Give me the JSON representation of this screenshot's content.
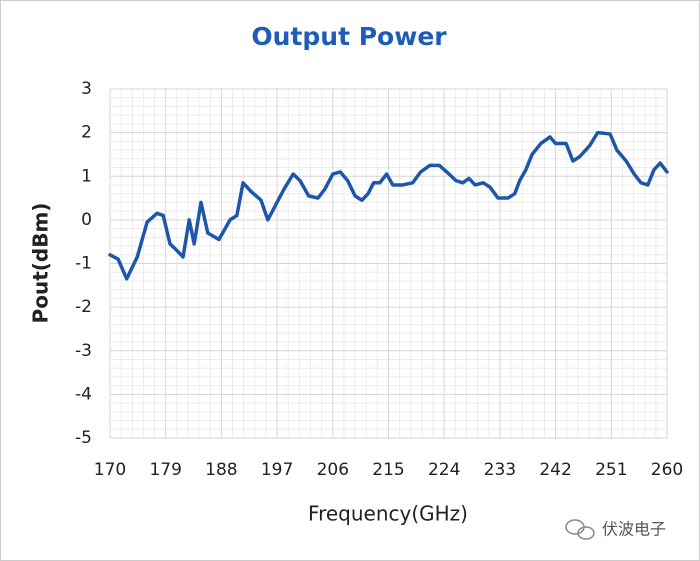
{
  "chart_data": {
    "type": "line",
    "title": "Output Power",
    "x_label": "Frequency(GHz)",
    "y_label": "Pout(dBm)",
    "x": [
      170,
      171.3,
      172.7,
      174.4,
      176,
      177.6,
      178.6,
      179.7,
      180.8,
      181.8,
      182.8,
      183.6,
      184.7,
      185.8,
      187.6,
      189.4,
      190.5,
      191.5,
      192.8,
      194.4,
      195.5,
      196.8,
      198.1,
      199.6,
      200.7,
      202.1,
      203.6,
      204.7,
      206,
      207.2,
      208.4,
      209.6,
      210.7,
      211.7,
      212.6,
      213.6,
      214.7,
      215.7,
      217.3,
      218.9,
      220.2,
      221.7,
      223.2,
      224.4,
      225.9,
      227,
      228,
      229,
      230.3,
      231.4,
      232.7,
      234.3,
      235.4,
      236.2,
      237.2,
      238.2,
      239.6,
      241.1,
      242,
      243.7,
      244.8,
      245.9,
      247.5,
      248.8,
      250.8,
      251.9,
      253.4,
      254.7,
      255.8,
      256.9,
      257.9,
      258.9,
      260
    ],
    "values": [
      -0.8,
      -0.9,
      -1.35,
      -0.85,
      -0.05,
      0.15,
      0.1,
      -0.55,
      -0.7,
      -0.85,
      0,
      -0.55,
      0.4,
      -0.3,
      -0.45,
      0,
      0.1,
      0.85,
      0.65,
      0.45,
      0,
      0.35,
      0.7,
      1.05,
      0.9,
      0.55,
      0.5,
      0.7,
      1.05,
      1.1,
      0.9,
      0.55,
      0.45,
      0.6,
      0.85,
      0.85,
      1.05,
      0.8,
      0.8,
      0.85,
      1.1,
      1.25,
      1.25,
      1.1,
      0.9,
      0.85,
      0.95,
      0.8,
      0.85,
      0.75,
      0.5,
      0.5,
      0.6,
      0.9,
      1.15,
      1.5,
      1.75,
      1.9,
      1.75,
      1.75,
      1.35,
      1.45,
      1.7,
      2.0,
      1.97,
      1.6,
      1.35,
      1.05,
      0.85,
      0.8,
      1.15,
      1.3,
      1.1
    ],
    "color": "#1f56a8",
    "xlim": [
      170,
      260
    ],
    "xticks": [
      170,
      179,
      188,
      197,
      206,
      215,
      224,
      233,
      242,
      251,
      260
    ],
    "ylim": [
      -5,
      3
    ],
    "yticks": [
      -5,
      -4,
      -3,
      -2,
      -1,
      0,
      1,
      2,
      3
    ],
    "grid": true,
    "minor_grid": true
  },
  "watermark": "伏波电子"
}
